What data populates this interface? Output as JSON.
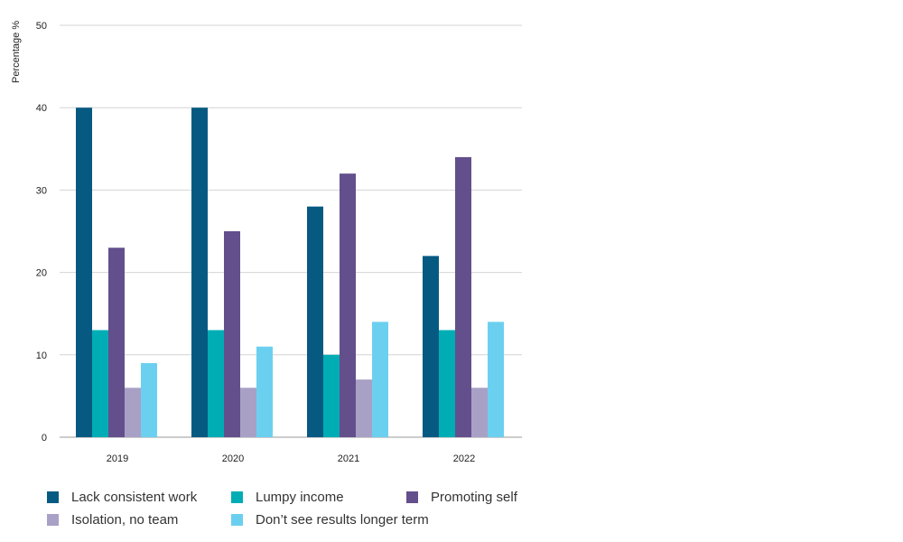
{
  "chart_data": {
    "type": "bar",
    "ylabel": "Percentage %",
    "xlabel": "",
    "ylim": [
      0,
      50
    ],
    "yticks": [
      0,
      10,
      20,
      30,
      40,
      50
    ],
    "grid": true,
    "legend_position": "bottom",
    "categories": [
      "2019",
      "2020",
      "2021",
      "2022"
    ],
    "series": [
      {
        "name": "Lack consistent work",
        "color": "#065a82",
        "values": [
          40,
          40,
          28,
          22
        ]
      },
      {
        "name": "Lumpy income",
        "color": "#00adb5",
        "values": [
          13,
          13,
          10,
          13
        ]
      },
      {
        "name": "Promoting self",
        "color": "#634f8c",
        "values": [
          23,
          25,
          32,
          34
        ]
      },
      {
        "name": "Isolation, no team",
        "color": "#a9a0c6",
        "values": [
          6,
          6,
          7,
          6
        ]
      },
      {
        "name": "Don’t see results longer term",
        "color": "#6bd0f0",
        "values": [
          9,
          11,
          14,
          14
        ]
      }
    ]
  }
}
